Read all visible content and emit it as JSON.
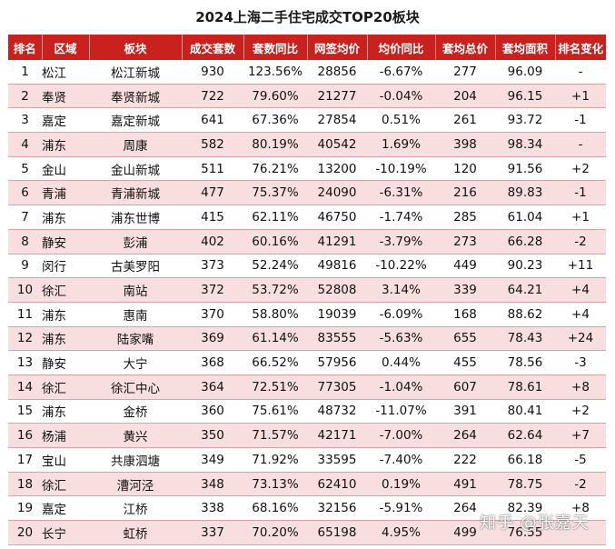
{
  "title": "2024上海二手住宅成交TOP20板块",
  "headers": [
    "排名",
    "区域",
    "板块",
    "成交套数",
    "套数同比",
    "网签均价",
    "均价同比",
    "套均总价",
    "套均面积",
    "排名变化"
  ],
  "rows": [
    {
      "rank": "1",
      "district": "松江",
      "block": "松江新城",
      "deals": "930",
      "deals_yoy": "123.56%",
      "avg_price": "28856",
      "price_yoy": "-6.67%",
      "avg_total": "277",
      "avg_area": "96.09",
      "rank_change": "-"
    },
    {
      "rank": "2",
      "district": "奉贤",
      "block": "奉贤新城",
      "deals": "722",
      "deals_yoy": "79.60%",
      "avg_price": "21277",
      "price_yoy": "-0.04%",
      "avg_total": "204",
      "avg_area": "96.15",
      "rank_change": "+1"
    },
    {
      "rank": "3",
      "district": "嘉定",
      "block": "嘉定新城",
      "deals": "641",
      "deals_yoy": "67.36%",
      "avg_price": "27854",
      "price_yoy": "0.51%",
      "avg_total": "261",
      "avg_area": "93.72",
      "rank_change": "-1"
    },
    {
      "rank": "4",
      "district": "浦东",
      "block": "周康",
      "deals": "582",
      "deals_yoy": "80.19%",
      "avg_price": "40542",
      "price_yoy": "1.69%",
      "avg_total": "398",
      "avg_area": "98.34",
      "rank_change": "-"
    },
    {
      "rank": "5",
      "district": "金山",
      "block": "金山新城",
      "deals": "511",
      "deals_yoy": "76.21%",
      "avg_price": "13200",
      "price_yoy": "-10.19%",
      "avg_total": "120",
      "avg_area": "91.56",
      "rank_change": "+2"
    },
    {
      "rank": "6",
      "district": "青浦",
      "block": "青浦新城",
      "deals": "477",
      "deals_yoy": "75.37%",
      "avg_price": "24090",
      "price_yoy": "-6.31%",
      "avg_total": "216",
      "avg_area": "89.83",
      "rank_change": "-1"
    },
    {
      "rank": "7",
      "district": "浦东",
      "block": "浦东世博",
      "deals": "415",
      "deals_yoy": "62.11%",
      "avg_price": "46750",
      "price_yoy": "-1.74%",
      "avg_total": "285",
      "avg_area": "61.04",
      "rank_change": "+1"
    },
    {
      "rank": "8",
      "district": "静安",
      "block": "彭浦",
      "deals": "402",
      "deals_yoy": "60.16%",
      "avg_price": "41291",
      "price_yoy": "-3.79%",
      "avg_total": "273",
      "avg_area": "66.28",
      "rank_change": "-2"
    },
    {
      "rank": "9",
      "district": "闵行",
      "block": "古美罗阳",
      "deals": "373",
      "deals_yoy": "52.24%",
      "avg_price": "49816",
      "price_yoy": "-10.22%",
      "avg_total": "449",
      "avg_area": "90.23",
      "rank_change": "+11"
    },
    {
      "rank": "10",
      "district": "徐汇",
      "block": "南站",
      "deals": "372",
      "deals_yoy": "53.72%",
      "avg_price": "52808",
      "price_yoy": "3.14%",
      "avg_total": "339",
      "avg_area": "64.21",
      "rank_change": "+4"
    },
    {
      "rank": "11",
      "district": "浦东",
      "block": "惠南",
      "deals": "370",
      "deals_yoy": "58.80%",
      "avg_price": "19039",
      "price_yoy": "-6.09%",
      "avg_total": "168",
      "avg_area": "88.62",
      "rank_change": "+4"
    },
    {
      "rank": "12",
      "district": "浦东",
      "block": "陆家嘴",
      "deals": "369",
      "deals_yoy": "61.14%",
      "avg_price": "83555",
      "price_yoy": "-5.63%",
      "avg_total": "655",
      "avg_area": "78.43",
      "rank_change": "+24"
    },
    {
      "rank": "13",
      "district": "静安",
      "block": "大宁",
      "deals": "368",
      "deals_yoy": "66.52%",
      "avg_price": "57956",
      "price_yoy": "0.44%",
      "avg_total": "455",
      "avg_area": "78.56",
      "rank_change": "-3"
    },
    {
      "rank": "14",
      "district": "徐汇",
      "block": "徐汇中心",
      "deals": "364",
      "deals_yoy": "72.51%",
      "avg_price": "77305",
      "price_yoy": "-1.04%",
      "avg_total": "607",
      "avg_area": "78.61",
      "rank_change": "+8"
    },
    {
      "rank": "15",
      "district": "浦东",
      "block": "金桥",
      "deals": "360",
      "deals_yoy": "75.61%",
      "avg_price": "48732",
      "price_yoy": "-11.07%",
      "avg_total": "391",
      "avg_area": "80.41",
      "rank_change": "+2"
    },
    {
      "rank": "16",
      "district": "杨浦",
      "block": "黄兴",
      "deals": "350",
      "deals_yoy": "71.57%",
      "avg_price": "42171",
      "price_yoy": "-7.00%",
      "avg_total": "264",
      "avg_area": "62.64",
      "rank_change": "+7"
    },
    {
      "rank": "17",
      "district": "宝山",
      "block": "共康泗塘",
      "deals": "349",
      "deals_yoy": "71.92%",
      "avg_price": "33595",
      "price_yoy": "-7.40%",
      "avg_total": "222",
      "avg_area": "66.18",
      "rank_change": "-5"
    },
    {
      "rank": "18",
      "district": "徐汇",
      "block": "漕河泾",
      "deals": "348",
      "deals_yoy": "73.13%",
      "avg_price": "62410",
      "price_yoy": "0.19%",
      "avg_total": "491",
      "avg_area": "78.75",
      "rank_change": "-2"
    },
    {
      "rank": "19",
      "district": "嘉定",
      "block": "江桥",
      "deals": "338",
      "deals_yoy": "68.16%",
      "avg_price": "32156",
      "price_yoy": "-5.91%",
      "avg_total": "264",
      "avg_area": "82.39",
      "rank_change": "+8"
    },
    {
      "rank": "20",
      "district": "长宁",
      "block": "虹桥",
      "deals": "337",
      "deals_yoy": "70.20%",
      "avg_price": "65198",
      "price_yoy": "4.95%",
      "avg_total": "499",
      "avg_area": "76.55",
      "rank_change": ""
    }
  ],
  "watermark": "知乎 @张嘉天",
  "colors": {
    "header_bg": "#c9211e",
    "alt_row": "#f8dede",
    "up": "#e5202a",
    "down": "#1aa24a"
  }
}
